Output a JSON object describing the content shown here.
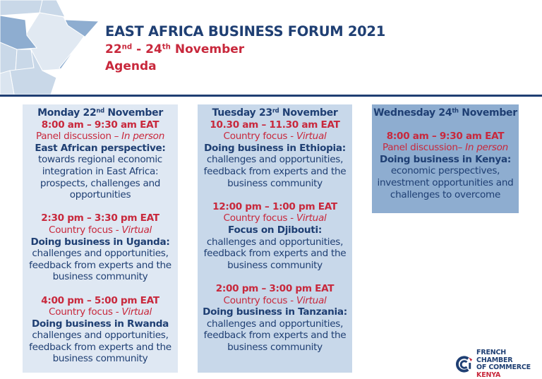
{
  "header": {
    "title": "EAST AFRICA BUSINESS FORUM 2021",
    "dates": {
      "start": "22",
      "start_sup": "nd",
      "sep": " - ",
      "end": "24",
      "end_sup": "th",
      "month": " November"
    },
    "subtitle": "Agenda"
  },
  "days": [
    {
      "name": "Monday 22",
      "sup": "nd",
      "month": " November",
      "sessions": [
        {
          "time": "8:00 am – 9:30 am EAT",
          "type": "Panel discussion – ",
          "mode": "In person",
          "title": "East African perspective:",
          "desc": "towards regional economic integration in East Africa: prospects, challenges and opportunities"
        },
        {
          "time": "2:30 pm – 3:30 pm EAT",
          "type": "Country focus - ",
          "mode": "Virtual",
          "title": "Doing business in Uganda:",
          "desc": "challenges and opportunities, feedback from experts and the business community"
        },
        {
          "time": "4:00 pm – 5:00 pm EAT",
          "type": "Country focus - ",
          "mode": "Virtual",
          "title": "Doing business in Rwanda",
          "desc": "challenges and opportunities, feedback from experts and the business community"
        }
      ]
    },
    {
      "name": "Tuesday 23",
      "sup": "rd",
      "month": " November",
      "sessions": [
        {
          "time": "10.30 am – 11.30 am EAT",
          "type": "Country focus - ",
          "mode": "Virtual",
          "title": "Doing business in Ethiopia:",
          "desc": "challenges and opportunities, feedback from experts and the business community"
        },
        {
          "time": "12:00 pm – 1:00 pm EAT",
          "type": "Country focus - ",
          "mode": "Virtual",
          "title": "Focus on Djibouti:",
          "desc": "challenges and opportunities, feedback from experts and the business community"
        },
        {
          "time": "2:00 pm – 3:00 pm EAT",
          "type": "Country focus - ",
          "mode": "Virtual",
          "title": "Doing business in Tanzania:",
          "desc": "challenges and opportunities, feedback from experts and the business community"
        }
      ]
    },
    {
      "name": "Wednesday 24",
      "sup": "th",
      "month": " November",
      "sessions": [
        {
          "time": "8:00 am – 9:30 am EAT",
          "type": "Panel discussion– ",
          "mode": "In person",
          "title": "Doing business in Kenya:",
          "desc": "economic perspectives, investment opportunities and challenges to overcome"
        }
      ]
    }
  ],
  "logo": {
    "line1": "FRENCH CHAMBER",
    "line2": "OF COMMERCE",
    "line3": "KENYA"
  },
  "colors": {
    "navy": "#1f3f73",
    "red": "#c8283c",
    "col1": "#dfe8f3",
    "col2": "#c8d8ea",
    "col3": "#8eadd0"
  }
}
